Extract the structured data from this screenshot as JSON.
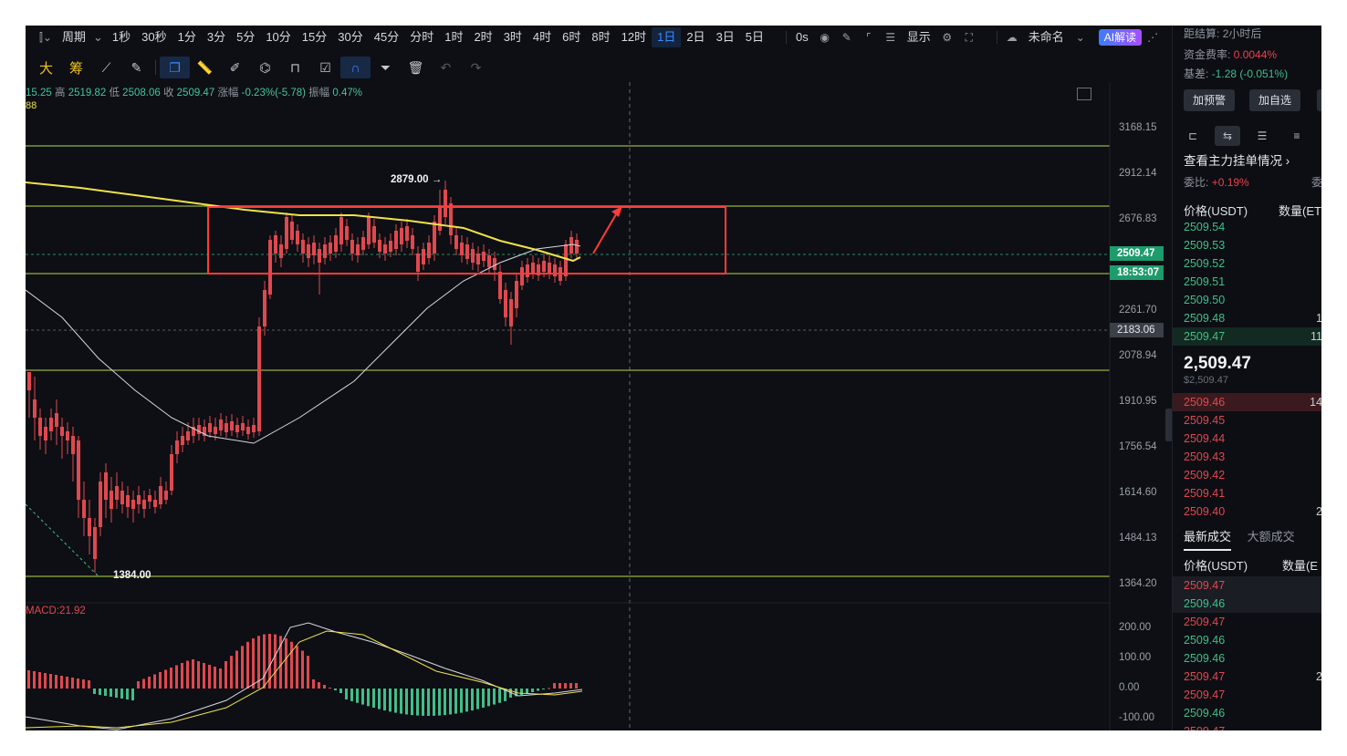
{
  "toolbar": {
    "periods": [
      "周期",
      "1秒",
      "30秒",
      "1分",
      "3分",
      "5分",
      "10分",
      "15分",
      "30分",
      "45分",
      "分时",
      "1时",
      "2时",
      "3时",
      "4时",
      "6时",
      "8时",
      "12时",
      "1日",
      "2日",
      "3日",
      "5日"
    ],
    "active_period": "1日",
    "countdown": "0s",
    "display_label": "显示",
    "layout_name": "未命名",
    "ai_label": "AI解读"
  },
  "drawing_tools": {
    "left_labels": [
      "大",
      "筹"
    ]
  },
  "ohlc": {
    "open_partial": "15.25",
    "high_label": "高",
    "high": "2519.82",
    "low_label": "低",
    "low": "2508.06",
    "close_label": "收",
    "close": "2509.47",
    "change_label": "涨幅",
    "change": "-0.23%(-5.78)",
    "amp_label": "振幅",
    "amp": "0.47%",
    "ma_value": "88"
  },
  "price_axis": [
    "3168.15",
    "2912.14",
    "2676.83",
    "2261.70",
    "2078.94",
    "1910.95",
    "1756.54",
    "1614.60",
    "1484.13",
    "1364.20"
  ],
  "current_price_tag": "2509.47",
  "countdown_tag": "18:53:07",
  "crosshair_price_tag": "2183.06",
  "annotations": {
    "high_marker": "2879.00 →",
    "low_marker": "1384.00"
  },
  "macd": {
    "label": "MACD:21.92",
    "axis": [
      "200.00",
      "100.00",
      "0.00",
      "-100.00"
    ]
  },
  "right_panel": {
    "settlement_label": "距结算:",
    "settlement_value": "2小时后",
    "funding_label": "资金费率:",
    "funding_value": "0.0044%",
    "basis_label": "基差:",
    "basis_value": "-1.28 (-0.051%)",
    "alert_button": "加预警",
    "watchlist_button": "加自选",
    "orders_link": "查看主力挂单情况",
    "ratio_label": "委比:",
    "ratio_value": "+0.19%",
    "ratio_right": "委",
    "price_header": "价格(USDT)",
    "qty_header": "数量(ET",
    "asks": [
      {
        "price": "2509.54",
        "qty": ""
      },
      {
        "price": "2509.53",
        "qty": ""
      },
      {
        "price": "2509.52",
        "qty": ""
      },
      {
        "price": "2509.51",
        "qty": ""
      },
      {
        "price": "2509.50",
        "qty": ""
      },
      {
        "price": "2509.48",
        "qty": "1"
      },
      {
        "price": "2509.47",
        "qty": "11"
      }
    ],
    "last_price": "2,509.47",
    "last_price_usd": "$2,509.47",
    "bids": [
      {
        "price": "2509.46",
        "qty": "14"
      },
      {
        "price": "2509.45",
        "qty": ""
      },
      {
        "price": "2509.44",
        "qty": ""
      },
      {
        "price": "2509.43",
        "qty": ""
      },
      {
        "price": "2509.42",
        "qty": ""
      },
      {
        "price": "2509.41",
        "qty": ""
      },
      {
        "price": "2509.40",
        "qty": "2"
      }
    ],
    "trades_tab": "最新成交",
    "big_trades_tab": "大额成交",
    "trades_price_header": "价格(USDT)",
    "trades_qty_header": "数量(E",
    "trades": [
      {
        "price": "2509.47",
        "side": "sell",
        "qty": ""
      },
      {
        "price": "2509.46",
        "side": "buy",
        "qty": ""
      },
      {
        "price": "2509.47",
        "side": "sell",
        "qty": ""
      },
      {
        "price": "2509.46",
        "side": "buy",
        "qty": ""
      },
      {
        "price": "2509.46",
        "side": "buy",
        "qty": ""
      },
      {
        "price": "2509.47",
        "side": "sell",
        "qty": "2"
      },
      {
        "price": "2509.47",
        "side": "sell",
        "qty": ""
      },
      {
        "price": "2509.46",
        "side": "buy",
        "qty": ""
      },
      {
        "price": "2509.47",
        "side": "sell",
        "qty": ""
      }
    ]
  },
  "colors": {
    "up": "#3fbf8a",
    "down": "#e0484f",
    "accent": "#3a8bff",
    "ma": "#f0e14a",
    "box": "#ff3b3b"
  }
}
